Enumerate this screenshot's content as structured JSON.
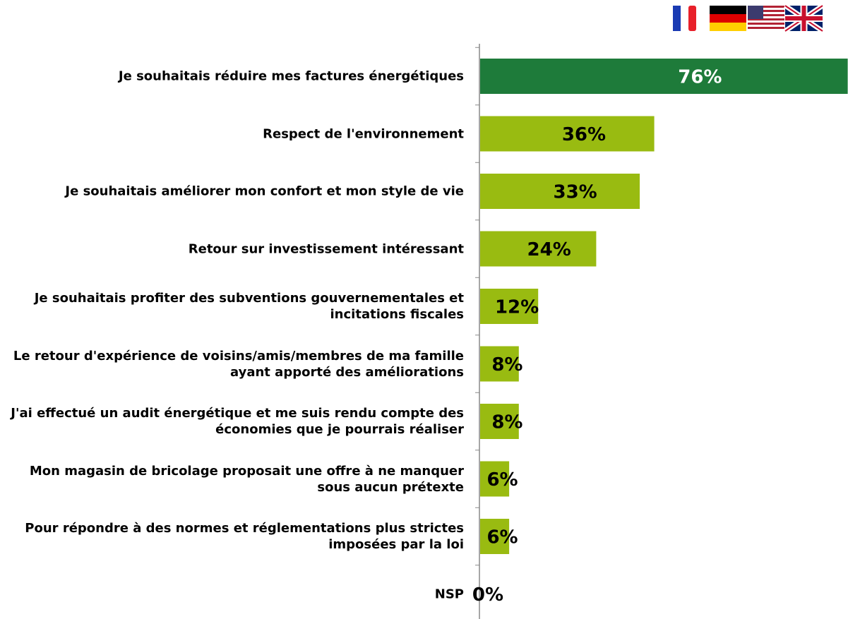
{
  "chart_data": {
    "type": "bar",
    "orientation": "horizontal",
    "categories": [
      "Je souhaitais réduire mes factures énergétiques",
      "Respect de l'environnement",
      "Je souhaitais améliorer mon confort et mon style de vie",
      "Retour sur investissement intéressant",
      "Je souhaitais profiter des subventions gouvernementales et incitations fiscales",
      "Le retour d'expérience de voisins/amis/membres de ma famille ayant apporté des améliorations",
      "J'ai effectué un audit énergétique et me suis rendu compte des économies que je pourrais réaliser",
      "Mon magasin de bricolage proposait une offre à ne manquer sous aucun prétexte",
      "Pour répondre à des normes et réglementations plus strictes imposées par la loi",
      "NSP"
    ],
    "values": [
      76,
      36,
      33,
      24,
      12,
      8,
      8,
      6,
      6,
      0
    ],
    "value_labels": [
      "76%",
      "36%",
      "33%",
      "24%",
      "12%",
      "8%",
      "8%",
      "6%",
      "6%",
      "0%"
    ],
    "colors": [
      "#1e7b3a",
      "#99bb11",
      "#99bb11",
      "#99bb11",
      "#99bb11",
      "#99bb11",
      "#99bb11",
      "#99bb11",
      "#99bb11",
      "#99bb11"
    ]
  }
}
